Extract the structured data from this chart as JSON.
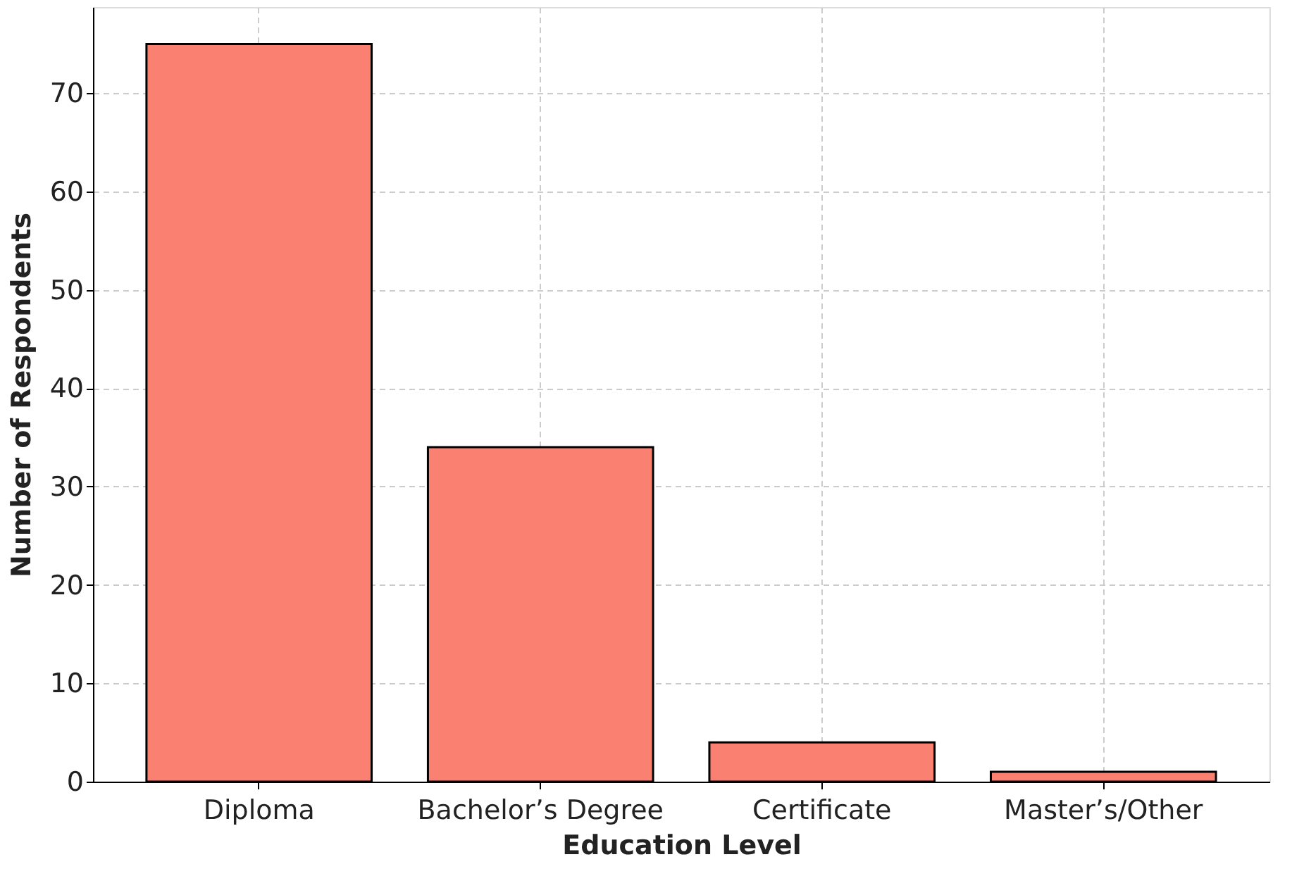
{
  "chart_data": {
    "type": "bar",
    "xlabel": "Education Level",
    "ylabel": "Number of Respondents",
    "categories": [
      "Diploma",
      "Bachelor’s Degree",
      "Certificate",
      "Master’s/Other"
    ],
    "values": [
      75,
      34,
      4,
      1
    ],
    "color": "#fa8072",
    "ylim": [
      0,
      78.75
    ],
    "yticks": [
      0,
      10,
      20,
      30,
      40,
      50,
      60,
      70
    ],
    "grid": true
  }
}
